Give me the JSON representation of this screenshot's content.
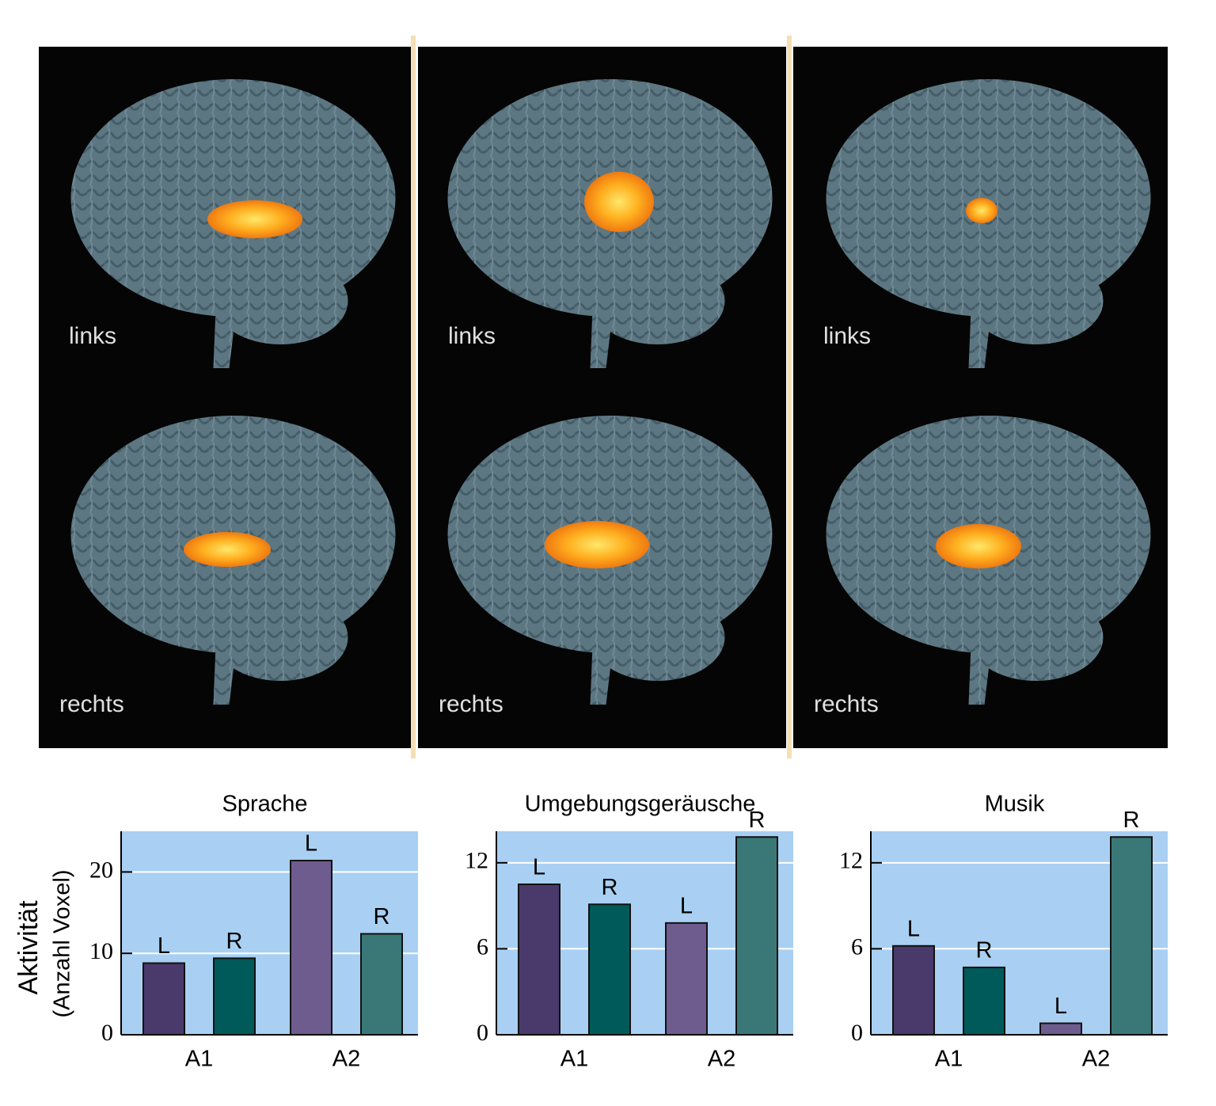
{
  "brain_panels": [
    {
      "upper": "links",
      "lower": "rechts"
    },
    {
      "upper": "links",
      "lower": "rechts"
    },
    {
      "upper": "links",
      "lower": "rechts"
    }
  ],
  "chart_data": [
    {
      "type": "bar",
      "title": "Sprache",
      "y_label": "Aktivität",
      "y_sublabel": "(Anzahl Voxel)",
      "categories": [
        "L",
        "R",
        "L",
        "R"
      ],
      "groups": [
        "A1",
        "A2"
      ],
      "values": [
        8.8,
        9.4,
        21.4,
        12.4
      ],
      "colors": [
        "#4a3a6b",
        "#005a5a",
        "#6e5c8e",
        "#3a7878"
      ],
      "ylim": [
        0,
        25
      ],
      "yticks": [
        0,
        10,
        20
      ],
      "grid": true
    },
    {
      "type": "bar",
      "title": "Umgebungsgeräusche",
      "categories": [
        "L",
        "R",
        "L",
        "R"
      ],
      "groups": [
        "A1",
        "A2"
      ],
      "values": [
        10.5,
        9.1,
        7.8,
        13.8
      ],
      "colors": [
        "#4a3a6b",
        "#005a5a",
        "#6e5c8e",
        "#3a7878"
      ],
      "ylim": [
        0,
        14.2
      ],
      "yticks": [
        0,
        6,
        12
      ],
      "grid": true
    },
    {
      "type": "bar",
      "title": "Musik",
      "categories": [
        "L",
        "R",
        "L",
        "R"
      ],
      "groups": [
        "A1",
        "A2"
      ],
      "values": [
        6.2,
        4.7,
        0.8,
        13.8
      ],
      "colors": [
        "#4a3a6b",
        "#005a5a",
        "#6e5c8e",
        "#3a7878"
      ],
      "ylim": [
        0,
        14.2
      ],
      "yticks": [
        0,
        6,
        12
      ],
      "grid": true
    }
  ]
}
